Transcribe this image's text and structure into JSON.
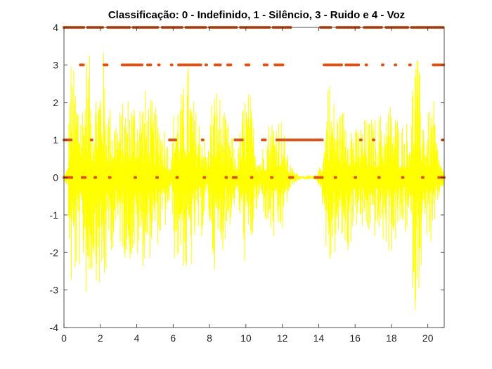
{
  "chart_data": {
    "type": "line",
    "title": "Classificação: 0 - Indefinido, 1 - Silêncio, 3 - Ruido e 4 - Voz",
    "xlabel": "",
    "ylabel": "",
    "xlim": [
      0,
      20.9
    ],
    "ylim": [
      -4,
      4
    ],
    "xticks": [
      0,
      2,
      4,
      6,
      8,
      10,
      12,
      14,
      16,
      18,
      20
    ],
    "yticks": [
      -4,
      -3,
      -2,
      -1,
      0,
      1,
      2,
      3,
      4
    ],
    "xtick_labels": [
      "0",
      "2",
      "4",
      "6",
      "8",
      "10",
      "12",
      "14",
      "16",
      "18",
      "20"
    ],
    "ytick_labels": [
      "-4",
      "-3",
      "-2",
      "-1",
      "0",
      "1",
      "2",
      "3",
      "4"
    ],
    "grid": false,
    "legend": "none",
    "series": [
      {
        "kind": "waveform",
        "color": "#ffff00",
        "approx_amplitude_envelope": [
          {
            "x": 0.0,
            "amp": 0.05
          },
          {
            "x": 0.2,
            "amp": 0.3
          },
          {
            "x": 0.35,
            "amp": 3.4
          },
          {
            "x": 0.5,
            "amp": 3.0
          },
          {
            "x": 0.8,
            "amp": 2.6
          },
          {
            "x": 1.0,
            "amp": 2.2
          },
          {
            "x": 1.3,
            "amp": 3.7
          },
          {
            "x": 1.6,
            "amp": 2.4
          },
          {
            "x": 2.0,
            "amp": 3.2
          },
          {
            "x": 2.1,
            "amp": 3.8
          },
          {
            "x": 2.5,
            "amp": 2.0
          },
          {
            "x": 3.0,
            "amp": 1.8
          },
          {
            "x": 3.5,
            "amp": 2.3
          },
          {
            "x": 4.0,
            "amp": 2.3
          },
          {
            "x": 4.5,
            "amp": 2.4
          },
          {
            "x": 5.0,
            "amp": 1.9
          },
          {
            "x": 5.5,
            "amp": 1.6
          },
          {
            "x": 5.9,
            "amp": 0.5
          },
          {
            "x": 6.1,
            "amp": 2.5
          },
          {
            "x": 6.5,
            "amp": 2.3
          },
          {
            "x": 6.8,
            "amp": 3.2
          },
          {
            "x": 7.2,
            "amp": 1.9
          },
          {
            "x": 7.6,
            "amp": 1.6
          },
          {
            "x": 7.9,
            "amp": 0.6
          },
          {
            "x": 8.1,
            "amp": 2.2
          },
          {
            "x": 8.4,
            "amp": 2.6
          },
          {
            "x": 8.8,
            "amp": 1.8
          },
          {
            "x": 9.2,
            "amp": 1.2
          },
          {
            "x": 9.5,
            "amp": 0.5
          },
          {
            "x": 9.9,
            "amp": 2.3
          },
          {
            "x": 10.2,
            "amp": 2.4
          },
          {
            "x": 10.5,
            "amp": 1.2
          },
          {
            "x": 10.8,
            "amp": 0.6
          },
          {
            "x": 11.2,
            "amp": 1.5
          },
          {
            "x": 11.6,
            "amp": 1.9
          },
          {
            "x": 12.0,
            "amp": 1.6
          },
          {
            "x": 12.3,
            "amp": 0.6
          },
          {
            "x": 12.6,
            "amp": 0.2
          },
          {
            "x": 13.0,
            "amp": 0.05
          },
          {
            "x": 13.8,
            "amp": 0.05
          },
          {
            "x": 14.0,
            "amp": 0.2
          },
          {
            "x": 14.3,
            "amp": 1.0
          },
          {
            "x": 14.5,
            "amp": 3.0
          },
          {
            "x": 14.8,
            "amp": 2.2
          },
          {
            "x": 15.2,
            "amp": 1.8
          },
          {
            "x": 15.6,
            "amp": 2.2
          },
          {
            "x": 16.0,
            "amp": 1.3
          },
          {
            "x": 16.5,
            "amp": 1.6
          },
          {
            "x": 17.0,
            "amp": 1.6
          },
          {
            "x": 17.5,
            "amp": 1.8
          },
          {
            "x": 18.0,
            "amp": 2.1
          },
          {
            "x": 18.5,
            "amp": 1.5
          },
          {
            "x": 19.0,
            "amp": 1.6
          },
          {
            "x": 19.3,
            "amp": 3.9
          },
          {
            "x": 19.5,
            "amp": 3.0
          },
          {
            "x": 19.9,
            "amp": 1.5
          },
          {
            "x": 20.3,
            "amp": 2.2
          },
          {
            "x": 20.6,
            "amp": 0.6
          },
          {
            "x": 20.9,
            "amp": 0.2
          }
        ]
      },
      {
        "kind": "classification",
        "color": "#d95319",
        "levels": [
          {
            "y": 4,
            "ranges": [
              [
                0.0,
                1.1
              ],
              [
                1.3,
                2.2
              ],
              [
                2.4,
                3.6
              ],
              [
                3.8,
                5.2
              ],
              [
                5.4,
                6.5
              ],
              [
                6.7,
                7.8
              ],
              [
                8.0,
                9.5
              ],
              [
                9.7,
                11.3
              ],
              [
                11.5,
                12.5
              ],
              [
                14.1,
                14.7
              ],
              [
                15.0,
                16.3
              ],
              [
                16.5,
                17.5
              ],
              [
                17.7,
                18.9
              ],
              [
                19.1,
                20.9
              ]
            ]
          },
          {
            "y": 3,
            "ranges": [
              [
                0.9,
                1.1
              ],
              [
                2.2,
                2.4
              ],
              [
                3.2,
                4.3
              ],
              [
                4.6,
                4.8
              ],
              [
                5.2,
                5.3
              ],
              [
                5.9,
                6.0
              ],
              [
                6.3,
                7.6
              ],
              [
                7.8,
                7.9
              ],
              [
                8.3,
                8.6
              ],
              [
                9.0,
                9.2
              ],
              [
                10.0,
                10.2
              ],
              [
                11.0,
                11.2
              ],
              [
                11.6,
                12.1
              ],
              [
                14.3,
                15.3
              ],
              [
                15.5,
                16.2
              ],
              [
                16.6,
                16.7
              ],
              [
                17.5,
                17.6
              ],
              [
                18.2,
                18.3
              ],
              [
                19.0,
                19.1
              ],
              [
                20.3,
                20.9
              ]
            ]
          },
          {
            "y": 1,
            "ranges": [
              [
                0.0,
                0.4
              ],
              [
                1.5,
                1.6
              ],
              [
                5.8,
                6.0
              ],
              [
                6.1,
                6.2
              ],
              [
                7.6,
                7.7
              ],
              [
                9.4,
                9.8
              ],
              [
                10.9,
                11.1
              ],
              [
                11.7,
                14.2
              ],
              [
                16.3,
                16.4
              ],
              [
                17.0,
                17.1
              ],
              [
                20.8,
                20.9
              ]
            ]
          },
          {
            "y": 0,
            "ranges": [
              [
                0.0,
                0.5
              ],
              [
                1.0,
                1.2
              ],
              [
                1.7,
                1.8
              ],
              [
                2.5,
                2.6
              ],
              [
                3.9,
                4.0
              ],
              [
                5.1,
                5.2
              ],
              [
                6.2,
                6.3
              ],
              [
                7.7,
                7.8
              ],
              [
                8.9,
                9.0
              ],
              [
                9.3,
                9.5
              ],
              [
                10.3,
                10.4
              ],
              [
                11.4,
                11.5
              ],
              [
                12.4,
                12.6
              ],
              [
                13.8,
                14.2
              ],
              [
                14.9,
                15.0
              ],
              [
                16.0,
                16.1
              ],
              [
                17.3,
                17.4
              ],
              [
                18.6,
                18.7
              ],
              [
                19.7,
                19.8
              ],
              [
                20.6,
                20.9
              ]
            ]
          }
        ]
      }
    ]
  }
}
